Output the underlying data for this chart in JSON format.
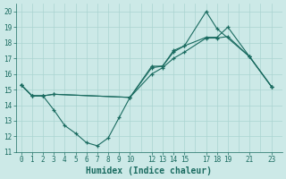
{
  "xlabel": "Humidex (Indice chaleur)",
  "background_color": "#cce9e7",
  "grid_color": "#aad4d1",
  "line_color": "#1a6b60",
  "xlim": [
    -0.5,
    24.0
  ],
  "ylim": [
    11,
    20.5
  ],
  "yticks": [
    11,
    12,
    13,
    14,
    15,
    16,
    17,
    18,
    19,
    20
  ],
  "xtick_positions": [
    0,
    1,
    2,
    3,
    4,
    5,
    6,
    7,
    8,
    9,
    10,
    12,
    13,
    14,
    15,
    17,
    18,
    19,
    21,
    23
  ],
  "xtick_labels": [
    "0",
    "1",
    "2",
    "3",
    "4",
    "5",
    "6",
    "7",
    "8",
    "9",
    "10",
    "12",
    "13",
    "14",
    "15",
    "17",
    "18",
    "19",
    "21",
    "23"
  ],
  "line1_x": [
    0,
    1,
    2,
    3,
    4,
    5,
    6,
    7,
    8,
    9,
    10,
    12,
    13,
    14,
    15,
    17,
    18,
    19,
    21,
    23
  ],
  "line1_y": [
    15.3,
    14.6,
    14.6,
    13.7,
    12.7,
    12.2,
    11.6,
    11.4,
    11.9,
    13.2,
    14.5,
    16.4,
    16.5,
    17.5,
    17.8,
    18.35,
    18.35,
    19.0,
    17.1,
    15.2
  ],
  "line2_x": [
    0,
    1,
    2,
    3,
    10,
    12,
    13,
    14,
    15,
    17,
    18,
    21,
    23
  ],
  "line2_y": [
    15.3,
    14.6,
    14.6,
    14.7,
    14.5,
    16.5,
    16.5,
    17.4,
    17.8,
    20.0,
    18.9,
    17.1,
    15.2
  ],
  "line3_x": [
    0,
    1,
    2,
    3,
    10,
    12,
    13,
    14,
    15,
    17,
    18,
    19,
    21,
    23
  ],
  "line3_y": [
    15.3,
    14.6,
    14.6,
    14.7,
    14.5,
    16.0,
    16.4,
    17.0,
    17.4,
    18.3,
    18.3,
    18.4,
    17.1,
    15.2
  ]
}
